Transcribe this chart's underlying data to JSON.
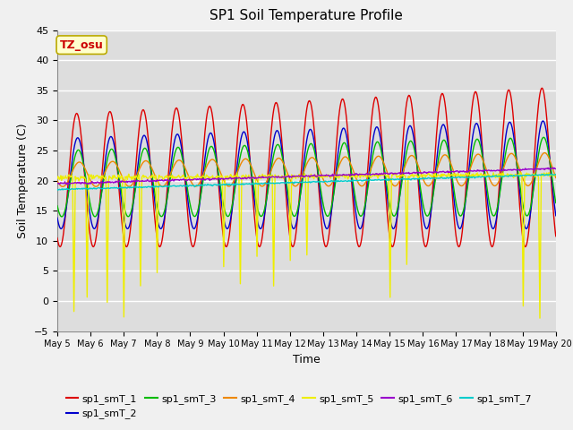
{
  "title": "SP1 Soil Temperature Profile",
  "xlabel": "Time",
  "ylabel": "Soil Temperature (C)",
  "ylim": [
    -5,
    45
  ],
  "annotation": "TZ_osu",
  "annotation_color": "#cc0000",
  "annotation_bg": "#ffffcc",
  "annotation_border": "#bbaa00",
  "plot_bg": "#dddddd",
  "fig_bg": "#f0f0f0",
  "grid_color": "#ffffff",
  "series_colors": {
    "sp1_smT_1": "#dd0000",
    "sp1_smT_2": "#0000cc",
    "sp1_smT_3": "#00bb00",
    "sp1_smT_4": "#ee8800",
    "sp1_smT_5": "#eeee00",
    "sp1_smT_6": "#9900cc",
    "sp1_smT_7": "#00cccc"
  },
  "x_tick_labels": [
    "May 5",
    "May 6",
    "May 7",
    "May 8",
    "May 9",
    "May 10",
    "May 11",
    "May 12",
    "May 13",
    "May 14",
    "May 15",
    "May 16",
    "May 17",
    "May 18",
    "May 19",
    "May 20"
  ],
  "yticks": [
    -5,
    0,
    5,
    10,
    15,
    20,
    25,
    30,
    35,
    40,
    45
  ]
}
